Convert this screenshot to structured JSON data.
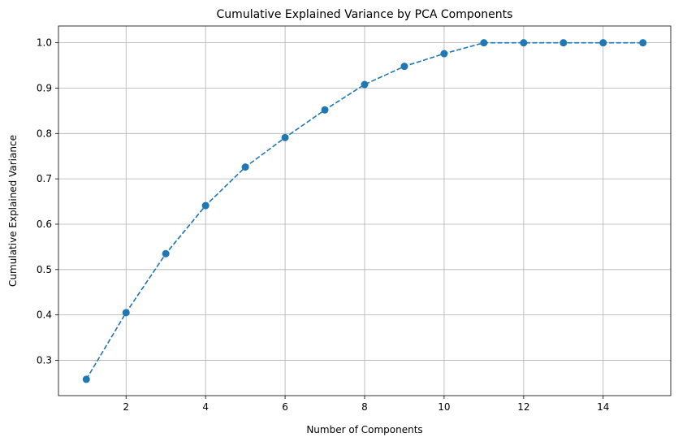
{
  "chart_data": {
    "type": "line",
    "title": "Cumulative Explained Variance by PCA Components",
    "xlabel": "Number of Components",
    "ylabel": "Cumulative Explained Variance",
    "xlim": [
      0.3,
      15.7
    ],
    "ylim": [
      0.222,
      1.037
    ],
    "xticks": [
      2,
      4,
      6,
      8,
      10,
      12,
      14
    ],
    "yticks": [
      0.3,
      0.4,
      0.5,
      0.6,
      0.7,
      0.8,
      0.9,
      1.0
    ],
    "xtick_labels": [
      "2",
      "4",
      "6",
      "8",
      "10",
      "12",
      "14"
    ],
    "ytick_labels": [
      "0.3",
      "0.4",
      "0.5",
      "0.6",
      "0.7",
      "0.8",
      "0.9",
      "1.0"
    ],
    "grid": true,
    "line_style": "dashed",
    "marker": "circle",
    "color": "#1f77b4",
    "series": [
      {
        "x": [
          1,
          2,
          3,
          4,
          5,
          6,
          7,
          8,
          9,
          10,
          11,
          12,
          13,
          14,
          15
        ],
        "values": [
          0.258,
          0.405,
          0.535,
          0.641,
          0.726,
          0.791,
          0.852,
          0.908,
          0.948,
          0.976,
          1.0,
          1.0,
          1.0,
          1.0,
          1.0
        ]
      }
    ]
  }
}
